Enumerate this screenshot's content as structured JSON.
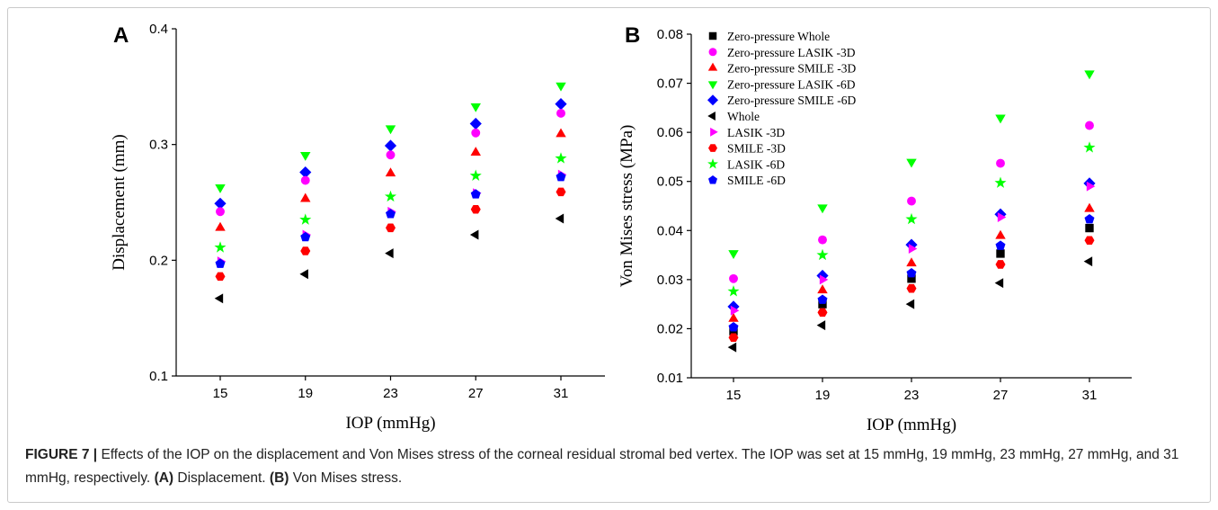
{
  "markers": {
    "zero-whole": {
      "shape": "square",
      "color": "#000000"
    },
    "zero-lasik3": {
      "shape": "circle",
      "color": "#ff00ff"
    },
    "zero-smile3": {
      "shape": "triangle-up",
      "color": "#ff0000"
    },
    "zero-lasik6": {
      "shape": "triangle-down",
      "color": "#00ff00"
    },
    "zero-smile6": {
      "shape": "diamond",
      "color": "#0000ff"
    },
    "whole": {
      "shape": "triangle-left",
      "color": "#000000"
    },
    "lasik3": {
      "shape": "triangle-right",
      "color": "#ff00ff"
    },
    "smile3": {
      "shape": "hexagon",
      "color": "#ff0000"
    },
    "lasik6": {
      "shape": "star",
      "color": "#00ff00"
    },
    "smile6": {
      "shape": "pentagon",
      "color": "#0000ff"
    }
  },
  "chart_data": [
    {
      "type": "scatter",
      "panel_label": "A",
      "xlabel": "IOP (mmHg)",
      "ylabel": "Displacement (mm)",
      "x": [
        15,
        19,
        23,
        27,
        31
      ],
      "xticks": [
        15,
        19,
        23,
        27,
        31
      ],
      "ylim": [
        0.1,
        0.4
      ],
      "yticks": [
        "0.1",
        "0.2",
        "0.3",
        "0.4"
      ],
      "series": [
        {
          "key": "zero-lasik6",
          "values": [
            0.263,
            0.291,
            0.314,
            0.333,
            0.351
          ]
        },
        {
          "key": "zero-smile6",
          "values": [
            0.249,
            0.276,
            0.299,
            0.318,
            0.335
          ]
        },
        {
          "key": "zero-lasik3",
          "values": [
            0.242,
            0.269,
            0.291,
            0.31,
            0.327
          ]
        },
        {
          "key": "zero-smile3",
          "values": [
            0.228,
            0.253,
            0.275,
            0.293,
            0.309
          ]
        },
        {
          "key": "lasik6",
          "values": [
            0.211,
            0.235,
            0.255,
            0.273,
            0.288
          ]
        },
        {
          "key": "lasik3",
          "values": [
            0.199,
            0.222,
            0.242,
            0.258,
            0.274
          ]
        },
        {
          "key": "smile6",
          "values": [
            0.197,
            0.22,
            0.24,
            0.257,
            0.272
          ]
        },
        {
          "key": "smile3",
          "values": [
            0.186,
            0.208,
            0.228,
            0.244,
            0.259
          ]
        },
        {
          "key": "whole",
          "values": [
            0.167,
            0.188,
            0.206,
            0.222,
            0.236
          ]
        }
      ]
    },
    {
      "type": "scatter",
      "panel_label": "B",
      "xlabel": "IOP (mmHg)",
      "ylabel": "Von Mises stress (MPa)",
      "x": [
        15,
        19,
        23,
        27,
        31
      ],
      "xticks": [
        15,
        19,
        23,
        27,
        31
      ],
      "ylim": [
        0.01,
        0.08
      ],
      "yticks": [
        "0.01",
        "0.02",
        "0.03",
        "0.04",
        "0.05",
        "0.06",
        "0.07",
        "0.08"
      ],
      "legend_position": "top-left",
      "series": [
        {
          "key": "zero-whole",
          "name": "Zero-pressure Whole",
          "values": [
            0.0195,
            0.025,
            0.0302,
            0.0353,
            0.0405
          ]
        },
        {
          "key": "zero-lasik3",
          "name": "Zero-pressure LASIK -3D",
          "values": [
            0.0302,
            0.0381,
            0.046,
            0.0537,
            0.0614
          ]
        },
        {
          "key": "zero-smile3",
          "name": "Zero-pressure SMILE -3D",
          "values": [
            0.022,
            0.0278,
            0.0333,
            0.0389,
            0.0444
          ]
        },
        {
          "key": "zero-lasik6",
          "name": "Zero-pressure LASIK -6D",
          "values": [
            0.0354,
            0.0447,
            0.054,
            0.063,
            0.072
          ]
        },
        {
          "key": "zero-smile6",
          "name": "Zero-pressure SMILE -6D",
          "values": [
            0.0245,
            0.0308,
            0.0371,
            0.0433,
            0.0496
          ]
        },
        {
          "key": "whole",
          "name": "Whole",
          "values": [
            0.0162,
            0.0207,
            0.025,
            0.0293,
            0.0337
          ]
        },
        {
          "key": "lasik3",
          "name": "LASIK -3D",
          "values": [
            0.0237,
            0.03,
            0.0363,
            0.0427,
            0.049
          ]
        },
        {
          "key": "smile3",
          "name": "SMILE -3D",
          "values": [
            0.0182,
            0.0233,
            0.0282,
            0.0331,
            0.038
          ]
        },
        {
          "key": "lasik6",
          "name": "LASIK -6D",
          "values": [
            0.0276,
            0.035,
            0.0423,
            0.0497,
            0.0569
          ]
        },
        {
          "key": "smile6",
          "name": "SMILE -6D",
          "values": [
            0.0203,
            0.0259,
            0.0313,
            0.0369,
            0.0423
          ]
        }
      ]
    }
  ],
  "caption": {
    "figure_label": "FIGURE 7 |",
    "text_1": " Effects of the IOP on the displacement and Von Mises stress of the corneal residual stromal bed vertex. The IOP was set at 15 mmHg, 19 mmHg, 23 mmHg, 27 mmHg, and 31 mmHg, respectively. ",
    "label_a": "(A)",
    "text_a": " Displacement. ",
    "label_b": "(B)",
    "text_b": " Von Mises stress."
  }
}
